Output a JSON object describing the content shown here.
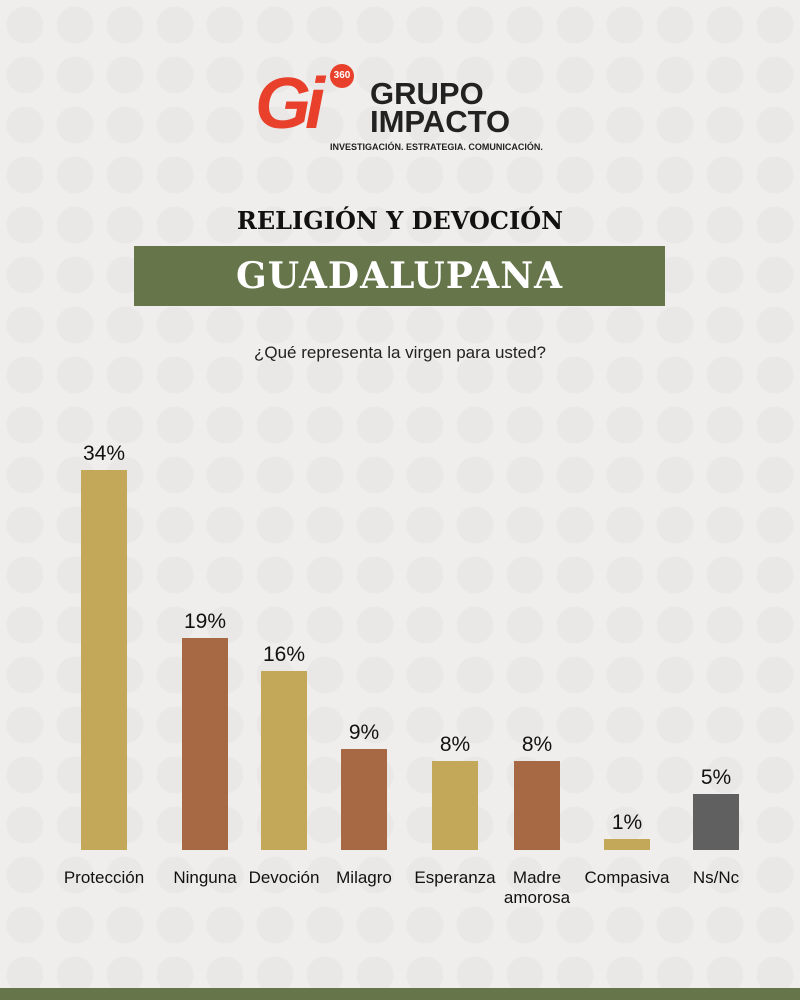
{
  "logo": {
    "mark": "Gi",
    "badge": "360",
    "name_line1": "GRUPO",
    "name_line2": "IMPACTO",
    "tagline": "INVESTIGACIÓN. ESTRATEGIA. COMUNICACIÓN."
  },
  "chart_data": {
    "type": "bar",
    "title": "RELIGIÓN Y DEVOCIÓN",
    "subtitle": "GUADALUPANA",
    "question": "¿Qué representa la virgen para usted?",
    "categories": [
      "Protección",
      "Ninguna",
      "Devoción",
      "Milagro",
      "Esperanza",
      "Madre amorosa",
      "Compasiva",
      "Ns/Nc"
    ],
    "values": [
      34,
      19,
      16,
      9,
      8,
      8,
      1,
      5
    ],
    "value_labels": [
      "34%",
      "19%",
      "16%",
      "9%",
      "8%",
      "8%",
      "1%",
      "5%"
    ],
    "colors": [
      "#c2a858",
      "#a66943",
      "#c2a858",
      "#a66943",
      "#c2a858",
      "#a66943",
      "#c2a858",
      "#606060"
    ]
  }
}
